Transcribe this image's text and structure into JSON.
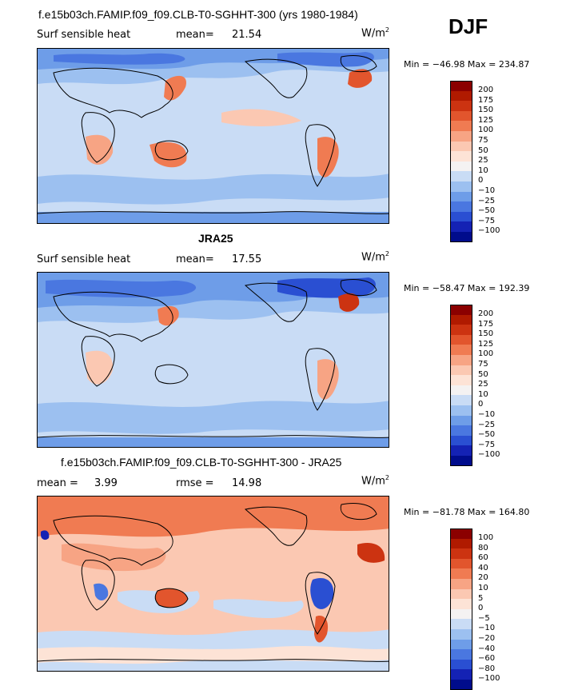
{
  "season": "DJF",
  "units": "W/m",
  "units_exp": "2",
  "panels": [
    {
      "title": "f.e15b03ch.FAMIP.f09_f09.CLB-T0-SGHHT-300 (yrs 1980-1984)",
      "left_label": "Surf sensible heat",
      "stat_label": "mean=",
      "stat_value": "21.54",
      "extra_label": "",
      "extra_value": "",
      "minmax": "Min = −46.98 Max = 234.87",
      "colorbar_ticks": [
        "200",
        "175",
        "150",
        "125",
        "100",
        "75",
        "50",
        "25",
        "10",
        "0",
        "−10",
        "−25",
        "−50",
        "−75",
        "−100"
      ],
      "colorbar_colors": [
        "#8b0000",
        "#b01a00",
        "#cc3311",
        "#e2552d",
        "#f07b52",
        "#f7a484",
        "#fbc8b2",
        "#fde3d6",
        "#f4f2f2",
        "#c9dcf5",
        "#9cc0f0",
        "#6e9de8",
        "#4a77e0",
        "#2a4fd2",
        "#1422b4",
        "#000c8c"
      ]
    },
    {
      "title": "JRA25",
      "left_label": "Surf sensible heat",
      "stat_label": "mean=",
      "stat_value": "17.55",
      "extra_label": "",
      "extra_value": "",
      "minmax": "Min = −58.47 Max = 192.39",
      "colorbar_ticks": [
        "200",
        "175",
        "150",
        "125",
        "100",
        "75",
        "50",
        "25",
        "10",
        "0",
        "−10",
        "−25",
        "−50",
        "−75",
        "−100"
      ],
      "colorbar_colors": [
        "#8b0000",
        "#b01a00",
        "#cc3311",
        "#e2552d",
        "#f07b52",
        "#f7a484",
        "#fbc8b2",
        "#fde3d6",
        "#f4f2f2",
        "#c9dcf5",
        "#9cc0f0",
        "#6e9de8",
        "#4a77e0",
        "#2a4fd2",
        "#1422b4",
        "#000c8c"
      ]
    },
    {
      "title": "f.e15b03ch.FAMIP.f09_f09.CLB-T0-SGHHT-300 - JRA25",
      "left_label": "mean =",
      "stat_label": "",
      "stat_value": "3.99",
      "extra_label": "rmse =",
      "extra_value": "14.98",
      "minmax": "Min = −81.78 Max = 164.80",
      "colorbar_ticks": [
        "100",
        "80",
        "60",
        "40",
        "20",
        "10",
        "5",
        "0",
        "−5",
        "−10",
        "−20",
        "−40",
        "−60",
        "−80",
        "−100"
      ],
      "colorbar_colors": [
        "#8b0000",
        "#b01a00",
        "#cc3311",
        "#e2552d",
        "#f07b52",
        "#f7a484",
        "#fbc8b2",
        "#fde3d6",
        "#f4f2f2",
        "#c9dcf5",
        "#9cc0f0",
        "#6e9de8",
        "#4a77e0",
        "#2a4fd2",
        "#1422b4",
        "#000c8c"
      ]
    }
  ]
}
